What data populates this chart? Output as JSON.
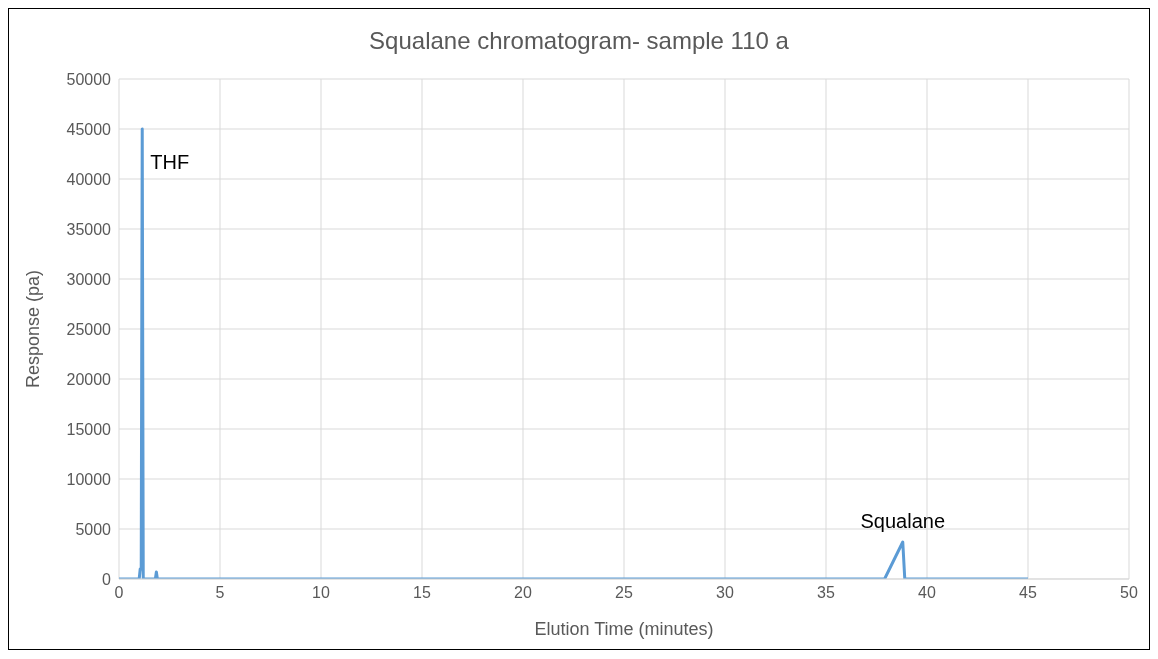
{
  "chart_data": {
    "type": "line",
    "title": "Squalane chromatogram- sample 110 a",
    "xlabel": "Elution Time (minutes)",
    "ylabel": "Response (pa)",
    "series": [
      {
        "color": "#5b9bd5",
        "x": [
          0,
          1.0,
          1.05,
          1.1,
          1.15,
          1.2,
          1.8,
          1.85,
          1.9,
          37.9,
          38.8,
          38.9,
          45
        ],
        "values": [
          0,
          0,
          1000,
          1000,
          45000,
          0,
          0,
          700,
          0,
          0,
          3700,
          0,
          0
        ]
      }
    ],
    "xlim": [
      0,
      50
    ],
    "xticks": [
      0,
      5,
      10,
      15,
      20,
      25,
      30,
      35,
      40,
      45,
      50
    ],
    "ylim": [
      0,
      50000
    ],
    "yticks": [
      0,
      5000,
      10000,
      15000,
      20000,
      25000,
      30000,
      35000,
      40000,
      45000,
      50000
    ],
    "grid": true,
    "marker": "none",
    "line_style": "solid",
    "annotations": [
      {
        "text": "THF",
        "x": 1.15,
        "y": 45000
      },
      {
        "text": "Squalane",
        "x": 38.8,
        "y": 3700
      }
    ]
  }
}
